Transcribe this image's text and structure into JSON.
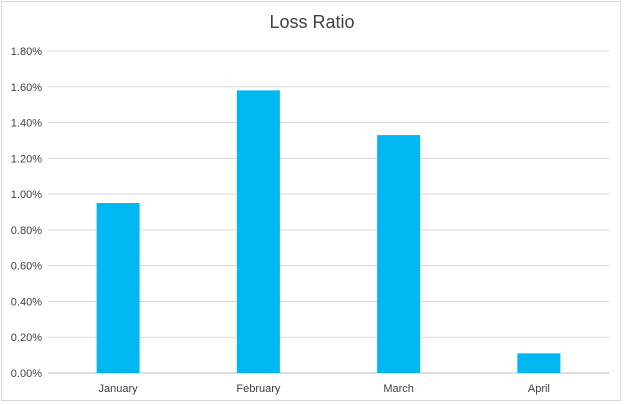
{
  "chart_data": {
    "type": "bar",
    "title": "Loss Ratio",
    "xlabel": "",
    "ylabel": "",
    "categories": [
      "January",
      "February",
      "March",
      "April"
    ],
    "values": [
      0.0095,
      0.0158,
      0.0133,
      0.0011
    ],
    "ylim": [
      0,
      0.018
    ],
    "yticks": [
      {
        "value": 0,
        "label": "0.00%"
      },
      {
        "value": 0.002,
        "label": "0.20%"
      },
      {
        "value": 0.004,
        "label": "0.40%"
      },
      {
        "value": 0.006,
        "label": "0.60%"
      },
      {
        "value": 0.008,
        "label": "0.80%"
      },
      {
        "value": 0.01,
        "label": "1.00%"
      },
      {
        "value": 0.012,
        "label": "1.20%"
      },
      {
        "value": 0.014,
        "label": "1.40%"
      },
      {
        "value": 0.016,
        "label": "1.60%"
      },
      {
        "value": 0.018,
        "label": "1.80%"
      }
    ],
    "grid": true,
    "legend": "none",
    "bar_color": "#00B8F1"
  }
}
